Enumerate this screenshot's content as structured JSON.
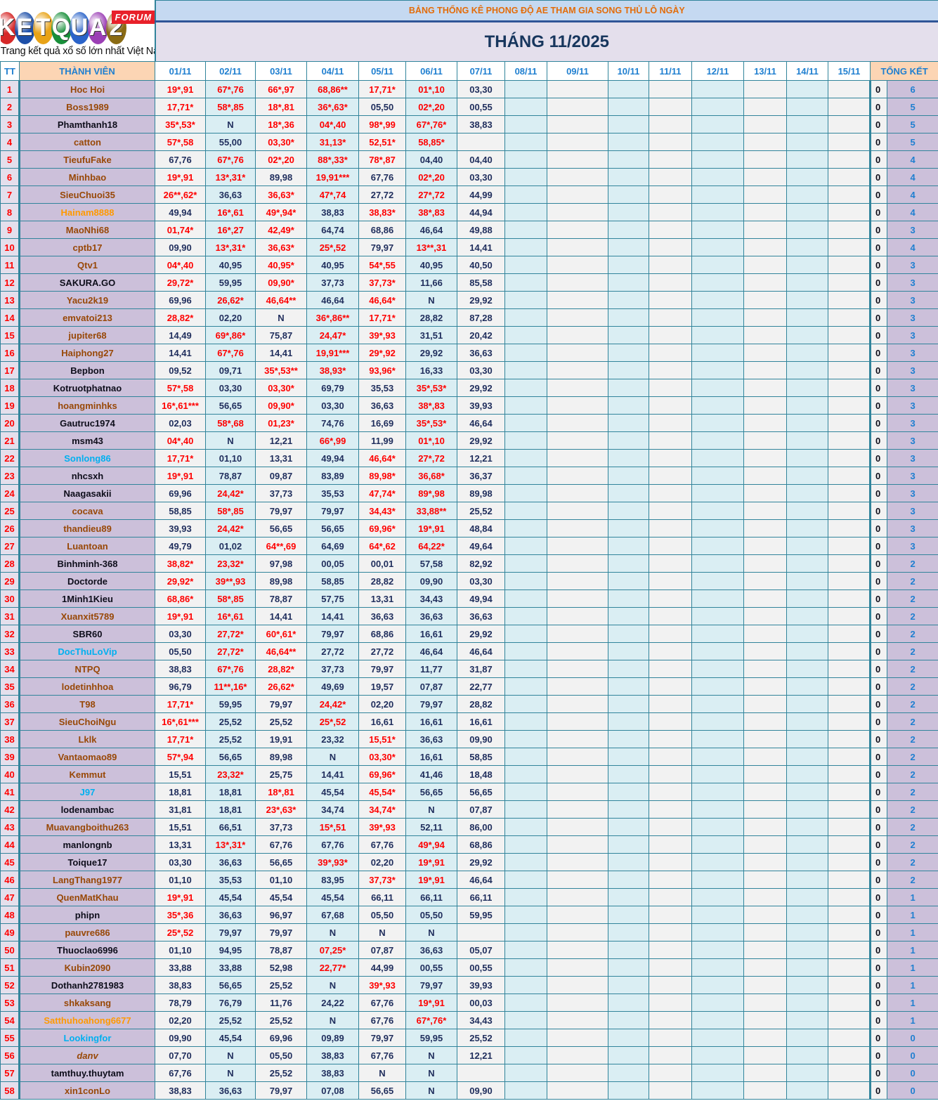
{
  "logo": {
    "letters": [
      "K",
      "E",
      "T",
      "Q",
      "U",
      "A",
      "2"
    ],
    "colors": [
      "#d62828",
      "#1d4fa8",
      "#e8a317",
      "#188f3a",
      "#2a63c9",
      "#9b3fb5",
      "#8a6b14"
    ],
    "forum": "FORUM",
    "tagline": "Trang kết quả xổ số lớn nhất Việt Nam"
  },
  "header": {
    "title": "BẢNG THỐNG KÊ PHONG ĐỘ AE THAM GIA SONG THỦ LÔ NGÀY",
    "month": "THÁNG 11/2025"
  },
  "columns": {
    "tt": "TT",
    "member": "THÀNH VIÊN",
    "days": [
      "01/11",
      "02/11",
      "03/11",
      "04/11",
      "05/11",
      "06/11",
      "07/11",
      "08/11",
      "09/11",
      "10/11",
      "11/11",
      "12/11",
      "13/11",
      "14/11",
      "15/11"
    ],
    "summary": "TỔNG KẾT"
  },
  "colors": {
    "hit": "#ff0000",
    "normal": "#1f2d5c",
    "border": "#31849b"
  },
  "rows": [
    {
      "tt": "1",
      "name": "Hoc Hoi",
      "style": "brown",
      "days": [
        "19*,91",
        "67*,76",
        "66*,97",
        "68,86**",
        "17,71*",
        "01*,10",
        "03,30"
      ],
      "zero": "0",
      "total": "6"
    },
    {
      "tt": "2",
      "name": "Boss1989",
      "style": "brown",
      "days": [
        "17,71*",
        "58*,85",
        "18*,81",
        "36*,63*",
        "05,50",
        "02*,20",
        "00,55"
      ],
      "zero": "0",
      "total": "5"
    },
    {
      "tt": "3",
      "name": "Phamthanh18",
      "style": "black",
      "days": [
        "35*,53*",
        "N",
        "18*,36",
        "04*,40",
        "98*,99",
        "67*,76*",
        "38,83"
      ],
      "zero": "0",
      "total": "5"
    },
    {
      "tt": "4",
      "name": "catton",
      "style": "brown",
      "days": [
        "57*,58",
        "55,00",
        "03,30*",
        "31,13*",
        "52,51*",
        "58,85*",
        ""
      ],
      "zero": "0",
      "total": "5"
    },
    {
      "tt": "5",
      "name": "TieufuFake",
      "style": "brown",
      "days": [
        "67,76",
        "67*,76",
        "02*,20",
        "88*,33*",
        "78*,87",
        "04,40",
        "04,40"
      ],
      "zero": "0",
      "total": "4"
    },
    {
      "tt": "6",
      "name": "Minhbao",
      "style": "brown",
      "days": [
        "19*,91",
        "13*,31*",
        "89,98",
        "19,91***",
        "67,76",
        "02*,20",
        "03,30"
      ],
      "zero": "0",
      "total": "4"
    },
    {
      "tt": "7",
      "name": "SieuChuoi35",
      "style": "brown",
      "days": [
        "26**,62*",
        "36,63",
        "36,63*",
        "47*,74",
        "27,72",
        "27*,72",
        "44,99"
      ],
      "zero": "0",
      "total": "4"
    },
    {
      "tt": "8",
      "name": "Hainam8888",
      "style": "orange",
      "days": [
        "49,94",
        "16*,61",
        "49*,94*",
        "38,83",
        "38,83*",
        "38*,83",
        "44,94"
      ],
      "zero": "0",
      "total": "4"
    },
    {
      "tt": "9",
      "name": "MaoNhi68",
      "style": "brown",
      "days": [
        "01,74*",
        "16*,27",
        "42,49*",
        "64,74",
        "68,86",
        "46,64",
        "49,88"
      ],
      "zero": "0",
      "total": "3"
    },
    {
      "tt": "10",
      "name": "cptb17",
      "style": "brown",
      "days": [
        "09,90",
        "13*,31*",
        "36,63*",
        "25*,52",
        "79,97",
        "13**,31",
        "14,41"
      ],
      "zero": "0",
      "total": "4"
    },
    {
      "tt": "11",
      "name": "Qtv1",
      "style": "brown",
      "days": [
        "04*,40",
        "40,95",
        "40,95*",
        "40,95",
        "54*,55",
        "40,95",
        "40,50"
      ],
      "zero": "0",
      "total": "3"
    },
    {
      "tt": "12",
      "name": "SAKURA.GO",
      "style": "black",
      "days": [
        "29,72*",
        "59,95",
        "09,90*",
        "37,73",
        "37,73*",
        "11,66",
        "85,58"
      ],
      "zero": "0",
      "total": "3"
    },
    {
      "tt": "13",
      "name": "Yacu2k19",
      "style": "brown",
      "days": [
        "69,96",
        "26,62*",
        "46,64**",
        "46,64",
        "46,64*",
        "N",
        "29,92"
      ],
      "zero": "0",
      "total": "3"
    },
    {
      "tt": "14",
      "name": "emvatoi213",
      "style": "brown",
      "days": [
        "28,82*",
        "02,20",
        "N",
        "36*,86**",
        "17,71*",
        "28,82",
        "87,28"
      ],
      "zero": "0",
      "total": "3"
    },
    {
      "tt": "15",
      "name": "jupiter68",
      "style": "brown",
      "days": [
        "14,49",
        "69*,86*",
        "75,87",
        "24,47*",
        "39*,93",
        "31,51",
        "20,42"
      ],
      "zero": "0",
      "total": "3"
    },
    {
      "tt": "16",
      "name": "Haiphong27",
      "style": "brown",
      "days": [
        "14,41",
        "67*,76",
        "14,41",
        "19,91***",
        "29*,92",
        "29,92",
        "36,63"
      ],
      "zero": "0",
      "total": "3"
    },
    {
      "tt": "17",
      "name": "Bepbon",
      "style": "black",
      "days": [
        "09,52",
        "09,71",
        "35*,53**",
        "38,93*",
        "93,96*",
        "16,33",
        "03,30"
      ],
      "zero": "0",
      "total": "3"
    },
    {
      "tt": "18",
      "name": "Kotruotphatnao",
      "style": "black",
      "days": [
        "57*,58",
        "03,30",
        "03,30*",
        "69,79",
        "35,53",
        "35*,53*",
        "29,92"
      ],
      "zero": "0",
      "total": "3"
    },
    {
      "tt": "19",
      "name": "hoangminhks",
      "style": "brown",
      "days": [
        "16*,61***",
        "56,65",
        "09,90*",
        "03,30",
        "36,63",
        "38*,83",
        "39,93"
      ],
      "zero": "0",
      "total": "3"
    },
    {
      "tt": "20",
      "name": "Gautruc1974",
      "style": "black",
      "days": [
        "02,03",
        "58*,68",
        "01,23*",
        "74,76",
        "16,69",
        "35*,53*",
        "46,64"
      ],
      "zero": "0",
      "total": "3"
    },
    {
      "tt": "21",
      "name": "msm43",
      "style": "black",
      "days": [
        "04*,40",
        "N",
        "12,21",
        "66*,99",
        "11,99",
        "01*,10",
        "29,92"
      ],
      "zero": "0",
      "total": "3"
    },
    {
      "tt": "22",
      "name": "Sonlong86",
      "style": "cyan",
      "days": [
        "17,71*",
        "01,10",
        "13,31",
        "49,94",
        "46,64*",
        "27*,72",
        "12,21"
      ],
      "zero": "0",
      "total": "3"
    },
    {
      "tt": "23",
      "name": "nhcsxh",
      "style": "black",
      "days": [
        "19*,91",
        "78,87",
        "09,87",
        "83,89",
        "89,98*",
        "36,68*",
        "36,37"
      ],
      "zero": "0",
      "total": "3"
    },
    {
      "tt": "24",
      "name": "Naagasakii",
      "style": "black",
      "days": [
        "69,96",
        "24,42*",
        "37,73",
        "35,53",
        "47,74*",
        "89*,98",
        "89,98"
      ],
      "zero": "0",
      "total": "3"
    },
    {
      "tt": "25",
      "name": "cocava",
      "style": "brown",
      "days": [
        "58,85",
        "58*,85",
        "79,97",
        "79,97",
        "34,43*",
        "33,88**",
        "25,52"
      ],
      "zero": "0",
      "total": "3"
    },
    {
      "tt": "26",
      "name": "thandieu89",
      "style": "brown",
      "days": [
        "39,93",
        "24,42*",
        "56,65",
        "56,65",
        "69,96*",
        "19*,91",
        "48,84"
      ],
      "zero": "0",
      "total": "3"
    },
    {
      "tt": "27",
      "name": "Luantoan",
      "style": "brown",
      "days": [
        "49,79",
        "01,02",
        "64**,69",
        "64,69",
        "64*,62",
        "64,22*",
        "49,64"
      ],
      "zero": "0",
      "total": "3"
    },
    {
      "tt": "28",
      "name": "Binhminh-368",
      "style": "black",
      "days": [
        "38,82*",
        "23,32*",
        "97,98",
        "00,05",
        "00,01",
        "57,58",
        "82,92"
      ],
      "zero": "0",
      "total": "2"
    },
    {
      "tt": "29",
      "name": "Doctorde",
      "style": "black",
      "days": [
        "29,92*",
        "39**,93",
        "89,98",
        "58,85",
        "28,82",
        "09,90",
        "03,30"
      ],
      "zero": "0",
      "total": "2"
    },
    {
      "tt": "30",
      "name": "1Minh1Kieu",
      "style": "black",
      "days": [
        "68,86*",
        "58*,85",
        "78,87",
        "57,75",
        "13,31",
        "34,43",
        "49,94"
      ],
      "zero": "0",
      "total": "2"
    },
    {
      "tt": "31",
      "name": "Xuanxit5789",
      "style": "brown",
      "days": [
        "19*,91",
        "16*,61",
        "14,41",
        "14,41",
        "36,63",
        "36,63",
        "36,63"
      ],
      "zero": "0",
      "total": "2"
    },
    {
      "tt": "32",
      "name": "SBR60",
      "style": "black",
      "days": [
        "03,30",
        "27,72*",
        "60*,61*",
        "79,97",
        "68,86",
        "16,61",
        "29,92"
      ],
      "zero": "0",
      "total": "2"
    },
    {
      "tt": "33",
      "name": "DocThuLoVip",
      "style": "cyan",
      "days": [
        "05,50",
        "27,72*",
        "46,64**",
        "27,72",
        "27,72",
        "46,64",
        "46,64"
      ],
      "zero": "0",
      "total": "2"
    },
    {
      "tt": "34",
      "name": "NTPQ",
      "style": "brown",
      "days": [
        "38,83",
        "67*,76",
        "28,82*",
        "37,73",
        "79,97",
        "11,77",
        "31,87"
      ],
      "zero": "0",
      "total": "2"
    },
    {
      "tt": "35",
      "name": "lodetinhhoa",
      "style": "brown",
      "days": [
        "96,79",
        "11**,16*",
        "26,62*",
        "49,69",
        "19,57",
        "07,87",
        "22,77"
      ],
      "zero": "0",
      "total": "2"
    },
    {
      "tt": "36",
      "name": "T98",
      "style": "brown",
      "days": [
        "17,71*",
        "59,95",
        "79,97",
        "24,42*",
        "02,20",
        "79,97",
        "28,82"
      ],
      "zero": "0",
      "total": "2"
    },
    {
      "tt": "37",
      "name": "SieuChoiNgu",
      "style": "brown",
      "days": [
        "16*,61***",
        "25,52",
        "25,52",
        "25*,52",
        "16,61",
        "16,61",
        "16,61"
      ],
      "zero": "0",
      "total": "2"
    },
    {
      "tt": "38",
      "name": "Lklk",
      "style": "brown",
      "days": [
        "17,71*",
        "25,52",
        "19,91",
        "23,32",
        "15,51*",
        "36,63",
        "09,90"
      ],
      "zero": "0",
      "total": "2"
    },
    {
      "tt": "39",
      "name": "Vantaomao89",
      "style": "brown",
      "days": [
        "57*,94",
        "56,65",
        "89,98",
        "N",
        "03,30*",
        "16,61",
        "58,85"
      ],
      "zero": "0",
      "total": "2"
    },
    {
      "tt": "40",
      "name": "Kemmut",
      "style": "brown",
      "days": [
        "15,51",
        "23,32*",
        "25,75",
        "14,41",
        "69,96*",
        "41,46",
        "18,48"
      ],
      "zero": "0",
      "total": "2"
    },
    {
      "tt": "41",
      "name": "J97",
      "style": "cyan",
      "days": [
        "18,81",
        "18,81",
        "18*,81",
        "45,54",
        "45,54*",
        "56,65",
        "56,65"
      ],
      "zero": "0",
      "total": "2"
    },
    {
      "tt": "42",
      "name": "lodenambac",
      "style": "black",
      "days": [
        "31,81",
        "18,81",
        "23*,63*",
        "34,74",
        "34,74*",
        "N",
        "07,87"
      ],
      "zero": "0",
      "total": "2"
    },
    {
      "tt": "43",
      "name": "Muavangboithu263",
      "style": "brown",
      "days": [
        "15,51",
        "66,51",
        "37,73",
        "15*,51",
        "39*,93",
        "52,11",
        "86,00"
      ],
      "zero": "0",
      "total": "2"
    },
    {
      "tt": "44",
      "name": "manlongnb",
      "style": "black",
      "days": [
        "13,31",
        "13*,31*",
        "67,76",
        "67,76",
        "67,76",
        "49*,94",
        "68,86"
      ],
      "zero": "0",
      "total": "2"
    },
    {
      "tt": "45",
      "name": "Toique17",
      "style": "black",
      "days": [
        "03,30",
        "36,63",
        "56,65",
        "39*,93*",
        "02,20",
        "19*,91",
        "29,92"
      ],
      "zero": "0",
      "total": "2"
    },
    {
      "tt": "46",
      "name": "LangThang1977",
      "style": "brown",
      "days": [
        "01,10",
        "35,53",
        "01,10",
        "83,95",
        "37,73*",
        "19*,91",
        "46,64"
      ],
      "zero": "0",
      "total": "2"
    },
    {
      "tt": "47",
      "name": "QuenMatKhau",
      "style": "brown",
      "days": [
        "19*,91",
        "45,54",
        "45,54",
        "45,54",
        "66,11",
        "66,11",
        "66,11"
      ],
      "zero": "0",
      "total": "1"
    },
    {
      "tt": "48",
      "name": "phipn",
      "style": "black",
      "days": [
        "35*,36",
        "36,63",
        "96,97",
        "67,68",
        "05,50",
        "05,50",
        "59,95"
      ],
      "zero": "0",
      "total": "1"
    },
    {
      "tt": "49",
      "name": "pauvre686",
      "style": "brown",
      "days": [
        "25*,52",
        "79,97",
        "79,97",
        "N",
        "N",
        "N",
        ""
      ],
      "zero": "0",
      "total": "1"
    },
    {
      "tt": "50",
      "name": "Thuoclao6996",
      "style": "black",
      "days": [
        "01,10",
        "94,95",
        "78,87",
        "07,25*",
        "07,87",
        "36,63",
        "05,07"
      ],
      "zero": "0",
      "total": "1"
    },
    {
      "tt": "51",
      "name": "Kubin2090",
      "style": "brown",
      "days": [
        "33,88",
        "33,88",
        "52,98",
        "22,77*",
        "44,99",
        "00,55",
        "00,55"
      ],
      "zero": "0",
      "total": "1"
    },
    {
      "tt": "52",
      "name": "Dothanh2781983",
      "style": "black",
      "days": [
        "38,83",
        "56,65",
        "25,52",
        "N",
        "39*,93",
        "79,97",
        "39,93"
      ],
      "zero": "0",
      "total": "1"
    },
    {
      "tt": "53",
      "name": "shkaksang",
      "style": "brown",
      "days": [
        "78,79",
        "76,79",
        "11,76",
        "24,22",
        "67,76",
        "19*,91",
        "00,03"
      ],
      "zero": "0",
      "total": "1"
    },
    {
      "tt": "54",
      "name": "Satthuhoahong6677",
      "style": "orange",
      "days": [
        "02,20",
        "25,52",
        "25,52",
        "N",
        "67,76",
        "67*,76*",
        "34,43"
      ],
      "zero": "0",
      "total": "1"
    },
    {
      "tt": "55",
      "name": "Lookingfor",
      "style": "cyan",
      "days": [
        "09,90",
        "45,54",
        "69,96",
        "09,89",
        "79,97",
        "59,95",
        "25,52"
      ],
      "zero": "0",
      "total": "0"
    },
    {
      "tt": "56",
      "name": "danv",
      "style": "italic",
      "days": [
        "07,70",
        "N",
        "05,50",
        "38,83",
        "67,76",
        "N",
        "12,21"
      ],
      "zero": "0",
      "total": "0"
    },
    {
      "tt": "57",
      "name": "tamthuy.thuytam",
      "style": "black",
      "days": [
        "67,76",
        "N",
        "25,52",
        "38,83",
        "N",
        "N",
        ""
      ],
      "zero": "0",
      "total": "0"
    },
    {
      "tt": "58",
      "name": "xin1conLo",
      "style": "brown",
      "days": [
        "38,83",
        "36,63",
        "79,97",
        "07,08",
        "56,65",
        "N",
        "09,90"
      ],
      "zero": "0",
      "total": "0"
    }
  ]
}
